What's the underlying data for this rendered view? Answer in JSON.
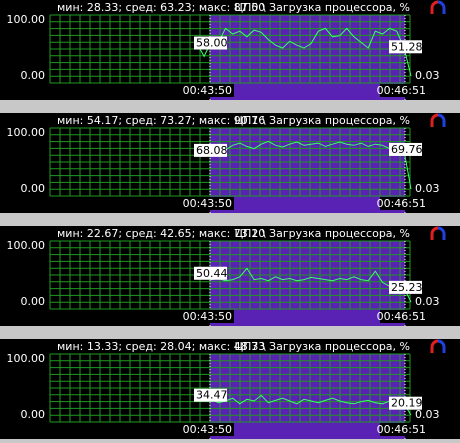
{
  "ylim": [
    0,
    100
  ],
  "panels": [
    {
      "stats": "мин: 28.33; сред: 63.23; макс: 87.50",
      "title": "ЦП0 \\ Загрузка процессора, %",
      "y_top": "100.00",
      "y_bottom": "0.00",
      "t_start": "00:43:50",
      "t_end": "00:46:51",
      "start_value": "58.00",
      "end_value": "51.28",
      "current_value": "0.03",
      "trace": [
        58,
        35,
        62,
        60,
        85,
        75,
        80,
        70,
        82,
        78,
        65,
        55,
        50,
        62,
        55,
        50,
        58,
        80,
        85,
        70,
        72,
        85,
        70,
        60,
        50,
        80,
        75,
        85,
        80,
        51.28,
        0.03
      ]
    },
    {
      "stats": "мин: 54.17; сред: 73.27; макс: 90.76",
      "title": "ЦП1 \\ Загрузка процессора, %",
      "y_top": "100.00",
      "y_bottom": "0.00",
      "t_start": "00:43:50",
      "t_end": "00:46:51",
      "start_value": "68.08",
      "end_value": "69.76",
      "current_value": "0.03",
      "trace": [
        68.08,
        72,
        75,
        80,
        70,
        78,
        82,
        76,
        72,
        80,
        85,
        78,
        75,
        80,
        84,
        78,
        80,
        82,
        76,
        80,
        84,
        80,
        78,
        82,
        76,
        80,
        78,
        72,
        70,
        69.76,
        0.03
      ]
    },
    {
      "stats": "мин: 22.67; сред: 42.65; макс: 73.10",
      "title": "ЦП2 \\ Загрузка процессора, %",
      "y_top": "100.00",
      "y_bottom": "0.00",
      "t_start": "00:43:50",
      "t_end": "00:46:51",
      "start_value": "50.44",
      "end_value": "25.23",
      "current_value": "0.03",
      "trace": [
        50.44,
        45,
        40,
        42,
        38,
        40,
        45,
        60,
        40,
        42,
        38,
        45,
        40,
        42,
        38,
        40,
        44,
        42,
        40,
        38,
        42,
        40,
        45,
        40,
        38,
        55,
        35,
        28,
        30,
        25.23,
        0.03
      ]
    },
    {
      "stats": "мин: 13.33; сред: 28.04; макс: 48.73",
      "title": "ЦП3 \\ Загрузка процессора, %",
      "y_top": "100.00",
      "y_bottom": "0.00",
      "t_start": "00:43:50",
      "t_end": "00:46:51",
      "start_value": "34.47",
      "end_value": "20.19",
      "current_value": "0.03",
      "trace": [
        34.47,
        25,
        28,
        22,
        25,
        30,
        20,
        28,
        25,
        35,
        22,
        26,
        30,
        25,
        20,
        28,
        25,
        22,
        26,
        30,
        25,
        22,
        20,
        24,
        26,
        22,
        20,
        25,
        22,
        20.19,
        0.03
      ]
    }
  ]
}
